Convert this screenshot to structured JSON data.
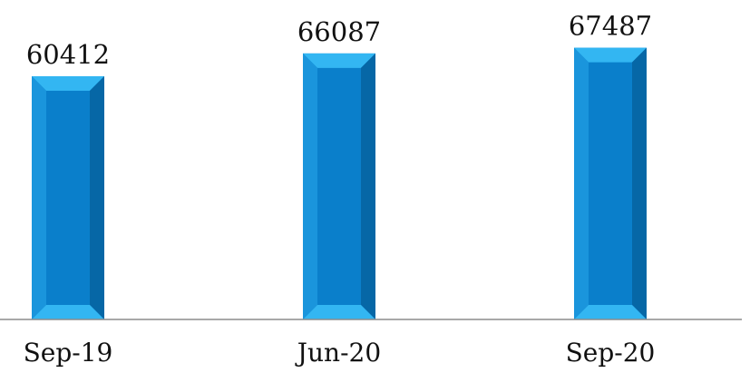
{
  "chart_data": {
    "type": "bar",
    "categories": [
      "Sep-19",
      "Jun-20",
      "Sep-20"
    ],
    "values": [
      60412,
      66087,
      67487
    ],
    "data_labels": [
      "60412",
      "66087",
      "67487"
    ],
    "title": "",
    "xlabel": "",
    "ylabel": "",
    "ylim": [
      0,
      70000
    ],
    "grid": false,
    "legend": "none",
    "colors": {
      "bar_body": "#0a7fcb",
      "bar_edge_light": "#33b6f2",
      "bar_edge_dark": "#0667a6",
      "axis": "#8c8c8c"
    }
  }
}
